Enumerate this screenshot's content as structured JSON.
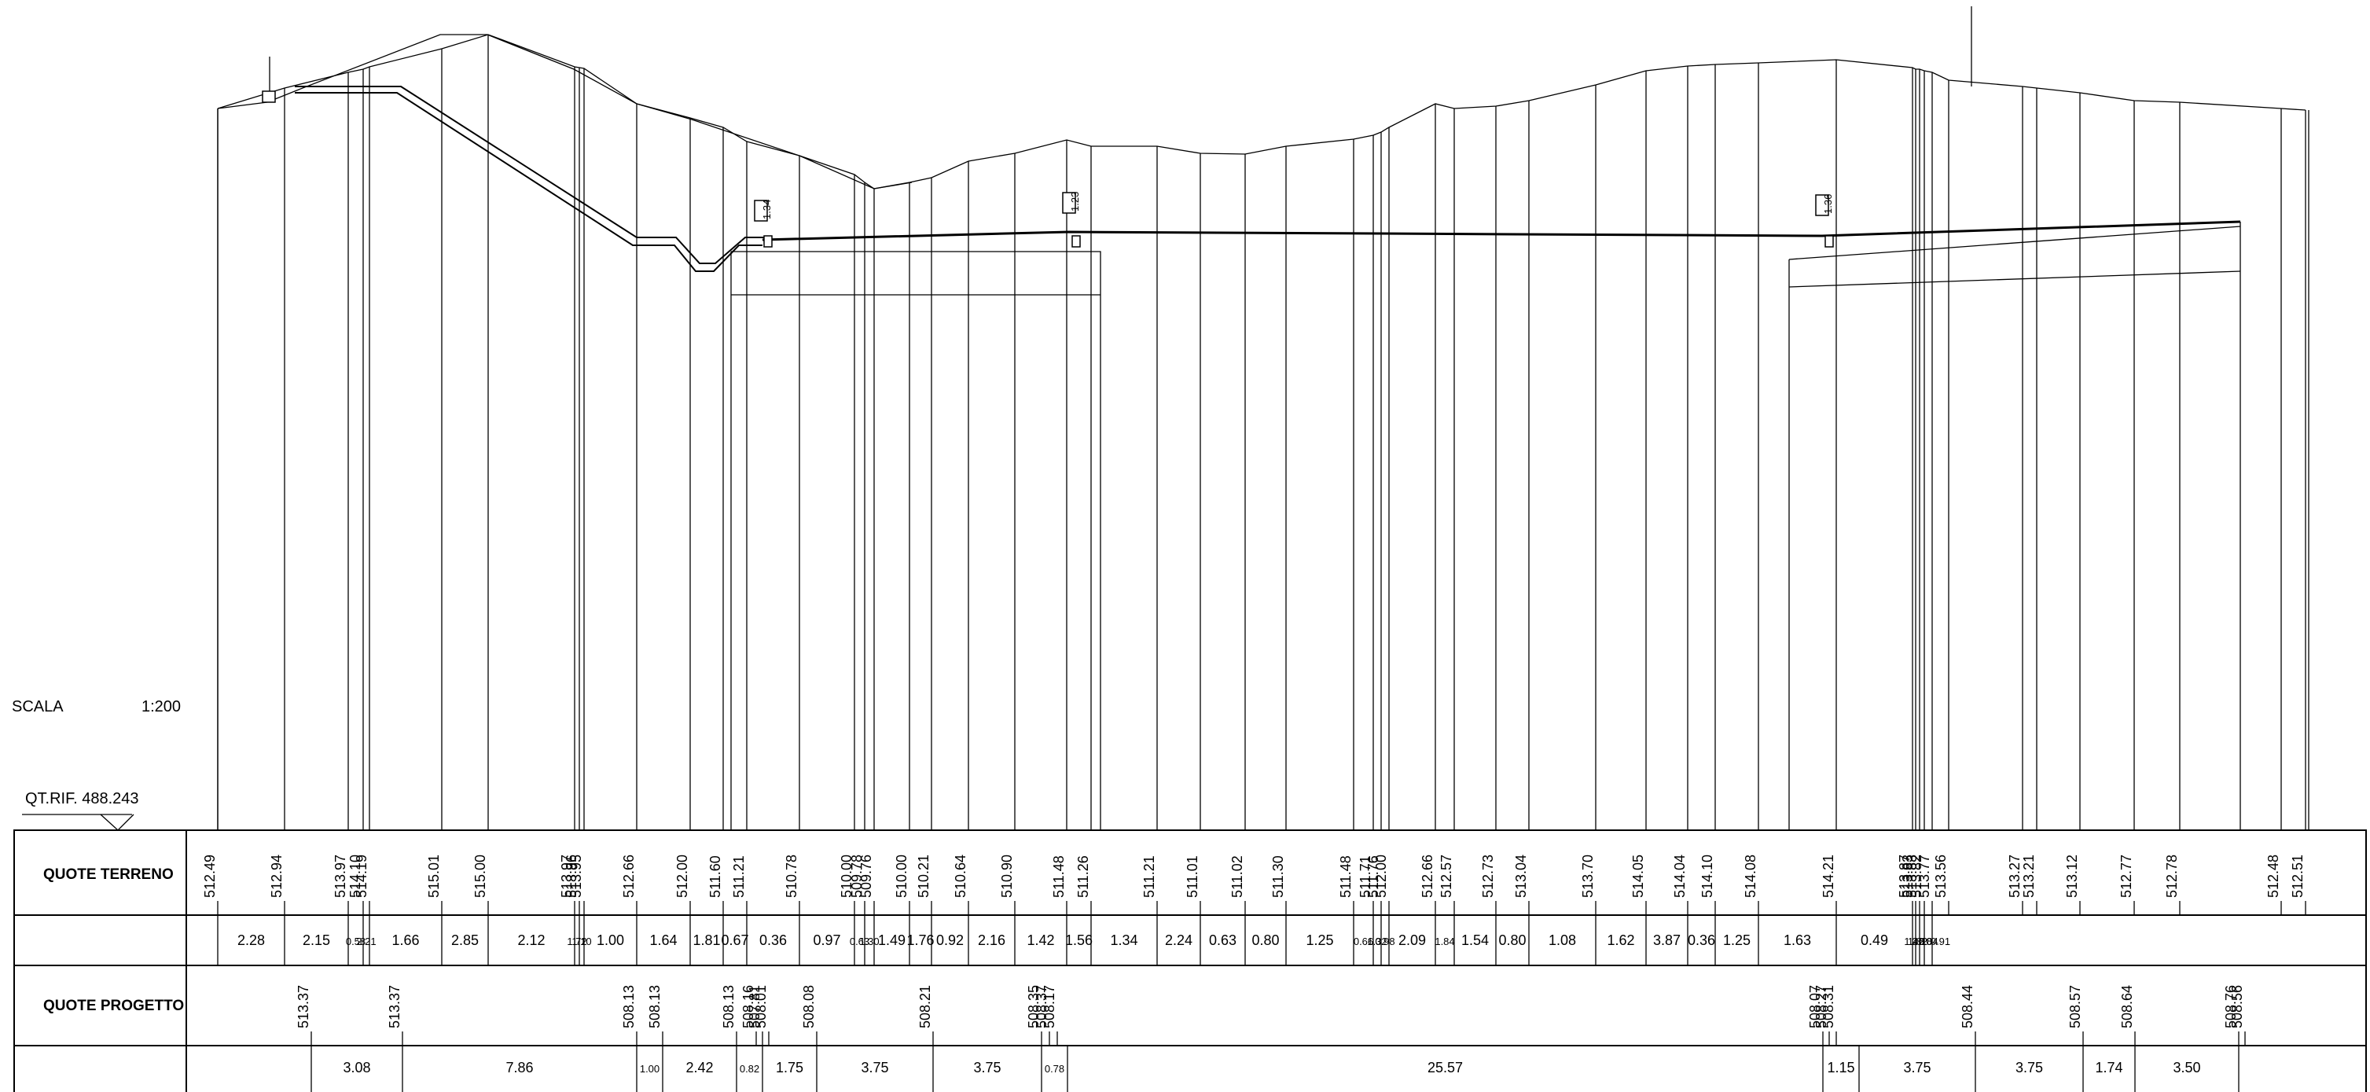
{
  "scale": {
    "label": "SCALA",
    "value": "1:200"
  },
  "reference": {
    "label": "QT.RIF. 488.243"
  },
  "rows": {
    "terrain_label": "QUOTE TERRENO",
    "design_label": "QUOTE PROGETTO"
  },
  "terrain_elevations": [
    "512.49",
    "512.94",
    "513.97",
    "514.10",
    "514.19",
    "515.01",
    "515.00",
    "513.97",
    "513.96",
    "513.95",
    "512.66",
    "512.00",
    "511.60",
    "511.21",
    "510.78",
    "510.00",
    "509.78",
    "509.76",
    "510.00",
    "510.21",
    "510.64",
    "510.90",
    "511.48",
    "511.26",
    "511.21",
    "511.01",
    "511.02",
    "511.30",
    "511.48",
    "511.71",
    "511.76",
    "512.00",
    "512.66",
    "512.57",
    "512.73",
    "513.04",
    "513.70",
    "514.05",
    "514.04",
    "514.10",
    "514.08",
    "514.21",
    "513.87",
    "513.83",
    "513.83",
    "513.82",
    "513.77",
    "513.56",
    "513.27",
    "513.21",
    "513.12",
    "512.77",
    "512.78",
    "512.48",
    "512.51"
  ],
  "terrain_distances": [
    "2.28",
    "2.15",
    "0.58",
    "2.21",
    "1.66",
    "2.85",
    "2.12",
    "1.72",
    "1.10",
    "1.00",
    "1.64",
    "1.81",
    "0.67",
    "0.36",
    "0.97",
    "0.63",
    "1.30",
    "1.49",
    "1.76",
    "0.92",
    "2.16",
    "1.42",
    "1.56",
    "1.34",
    "2.24",
    "0.63",
    "0.80",
    "1.25",
    "0.66",
    "1.32",
    "0.98",
    "2.09",
    "1.84",
    "1.54",
    "0.80",
    "1.08",
    "1.62",
    "3.87",
    "0.36",
    "1.25",
    "1.63",
    "0.49",
    "1.46",
    "1.82",
    "2.10",
    "2.84",
    "0.91"
  ],
  "design_elevations": [
    "513.37",
    "513.37",
    "508.13",
    "508.13",
    "508.13",
    "508.16",
    "507.81",
    "508.01",
    "508.08",
    "508.21",
    "508.35",
    "508.37",
    "508.17",
    "508.07",
    "508.27",
    "508.31",
    "508.44",
    "508.57",
    "508.64",
    "508.76",
    "508.56"
  ],
  "design_distances": [
    "3.08",
    "7.86",
    "1.00",
    "2.42",
    "0.82",
    "1.75",
    "3.75",
    "3.75",
    "0.78",
    "25.57",
    "1.15",
    "3.75",
    "3.75",
    "1.74",
    "3.50"
  ],
  "design_marks": [
    "1.34",
    "1.23",
    "1.36"
  ],
  "legend_colors": {
    "line": "#000000",
    "background": "#ffffff"
  }
}
